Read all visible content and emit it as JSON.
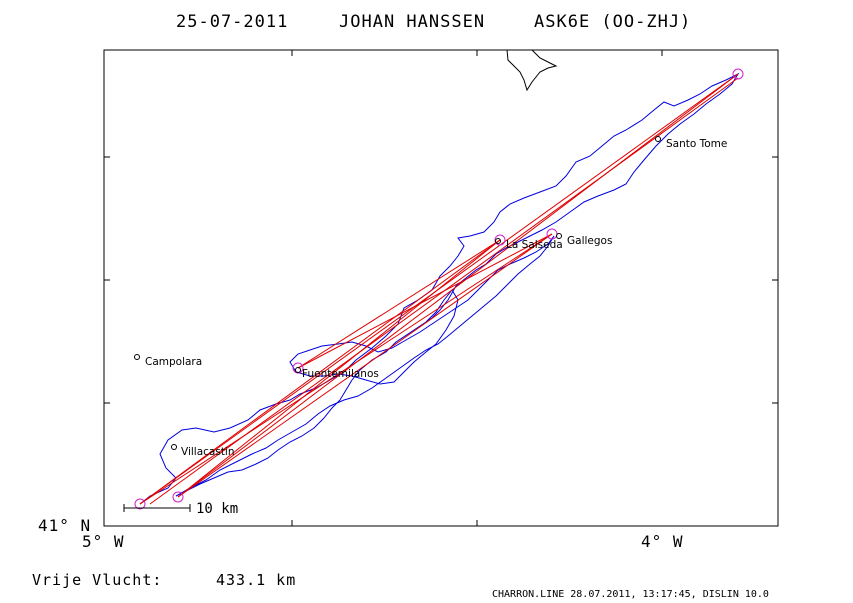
{
  "header": {
    "date": "25-07-2011",
    "pilot": "JOHAN HANSSEN",
    "glider": "ASK6E (OO-ZHJ)"
  },
  "axes": {
    "lat_label": "41° N",
    "lon_west_label": "5° W",
    "lon_east_label": "4° W"
  },
  "places": [
    {
      "name": "Santo Tome"
    },
    {
      "name": "La Salseda"
    },
    {
      "name": "Gallegos"
    },
    {
      "name": "Campolara"
    },
    {
      "name": "Fuentemilanos"
    },
    {
      "name": "Villacastin"
    }
  ],
  "scale_bar": {
    "label": "10 km"
  },
  "footer": {
    "distance_label": "Vrije Vlucht:",
    "distance_value": "433.1 km",
    "credit": "CHARRON.LINE 28.07.2011, 13:17:45, DISLIN 10.0"
  },
  "colors": {
    "track": "#0000e0",
    "task": "#e00000",
    "turnpoint": "#cc22cc",
    "frame": "#000000"
  }
}
